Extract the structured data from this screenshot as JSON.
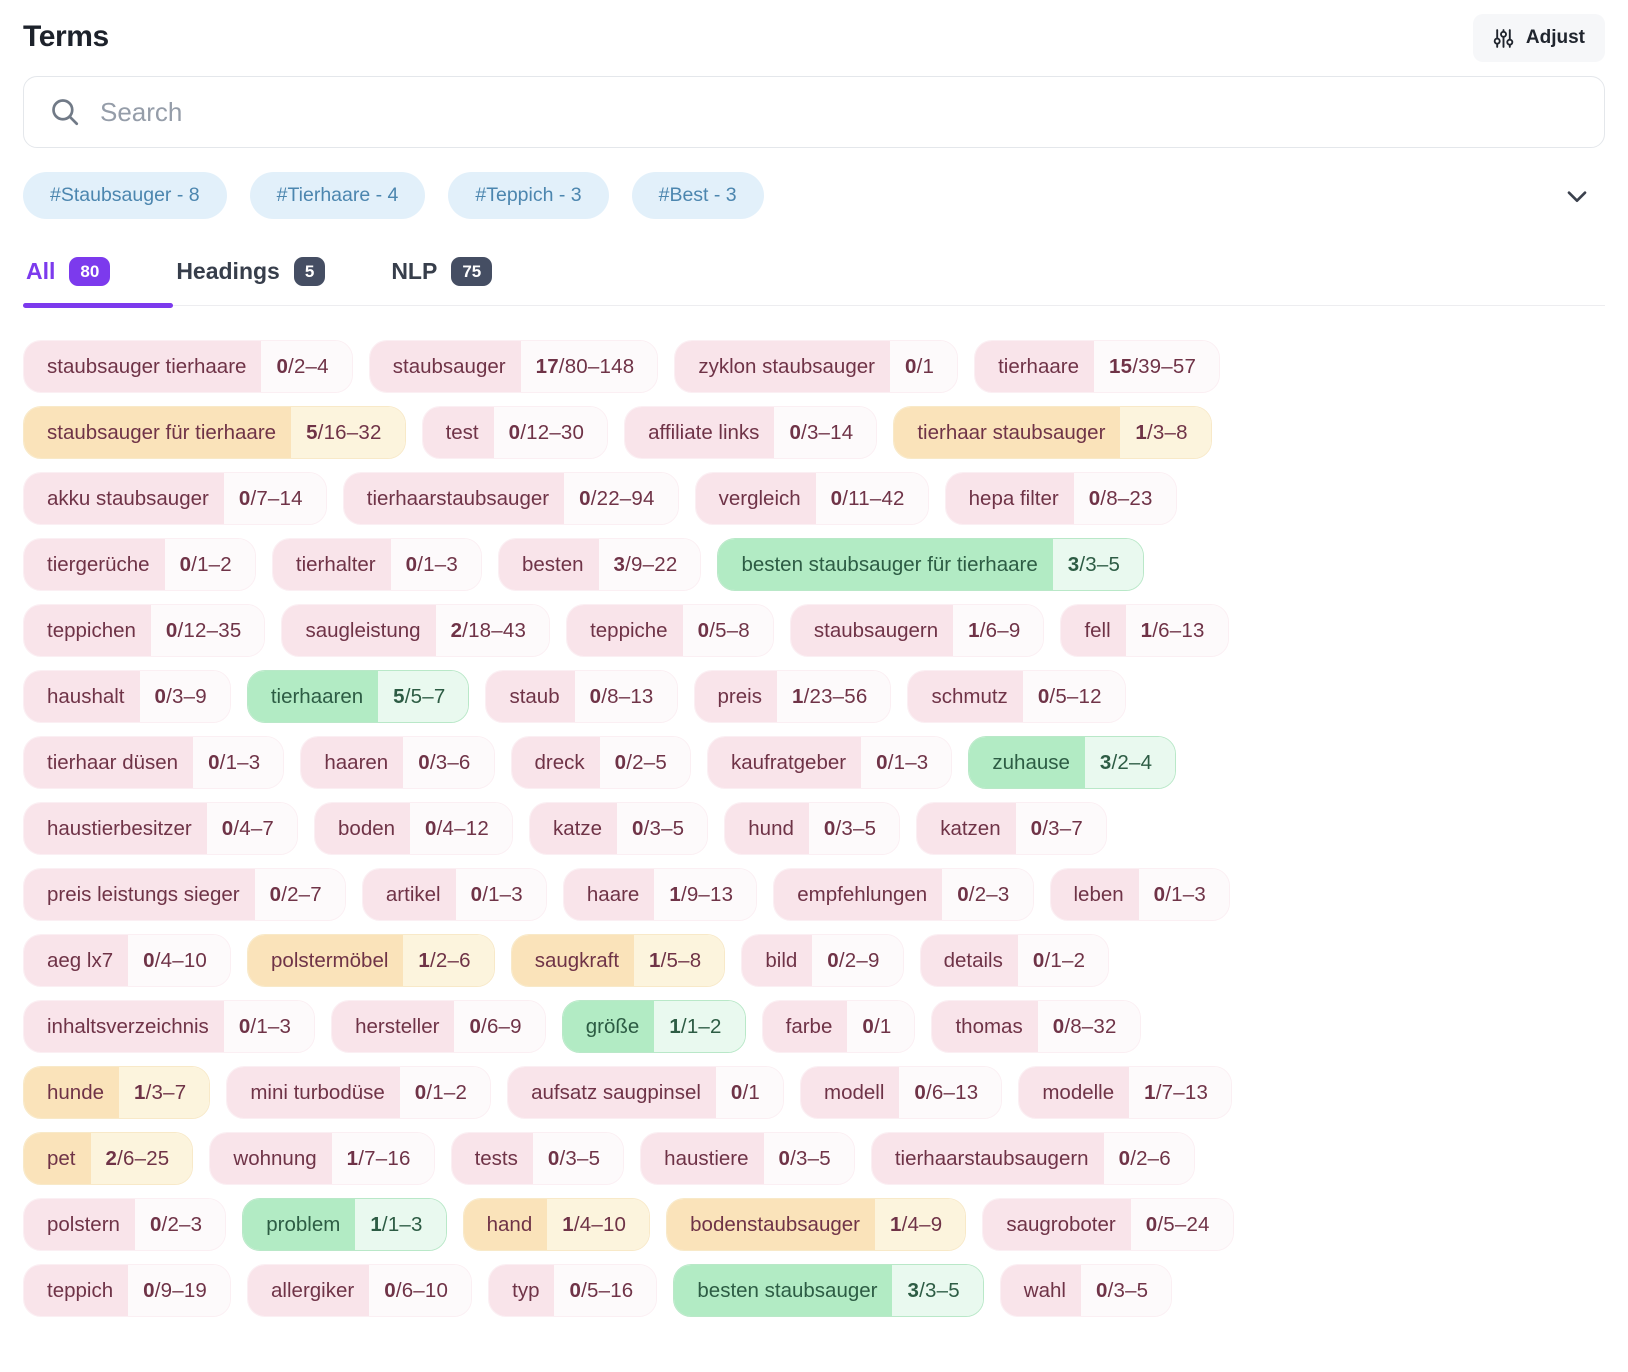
{
  "header": {
    "title": "Terms",
    "adjust_label": "Adjust"
  },
  "search": {
    "placeholder": "Search"
  },
  "hashtags": [
    "#Staubsauger - 8",
    "#Tierhaare - 4",
    "#Teppich - 3",
    "#Best - 3"
  ],
  "tabs": [
    {
      "label": "All",
      "count": "80",
      "active": true
    },
    {
      "label": "Headings",
      "count": "5",
      "active": false
    },
    {
      "label": "NLP",
      "count": "75",
      "active": false
    }
  ],
  "colors": {
    "accent_purple": "#7c3aed",
    "badge_slate": "#454e63",
    "hashtag_bg": "#e2f0fa",
    "hashtag_text": "#4c86af",
    "pink_label_bg": "#f9e4ea",
    "pink_count_bg": "#fdfafb",
    "pink_text": "#6f3347",
    "orange_label_bg": "#fae3ba",
    "orange_count_bg": "#fcf4dd",
    "green_label_bg": "#b2ebc4",
    "green_count_bg": "#e9f9ef",
    "green_text": "#2d5c44"
  },
  "terms": {
    "rows": [
      [
        {
          "label": "staubsauger tierhaare",
          "used": "0",
          "range": "2–4",
          "variant": "pink"
        },
        {
          "label": "staubsauger",
          "used": "17",
          "range": "80–148",
          "variant": "pink"
        },
        {
          "label": "zyklon staubsauger",
          "used": "0",
          "range": "1",
          "variant": "pink"
        },
        {
          "label": "tierhaare",
          "used": "15",
          "range": "39–57",
          "variant": "pink"
        }
      ],
      [
        {
          "label": "staubsauger für tierhaare",
          "used": "5",
          "range": "16–32",
          "variant": "orange"
        },
        {
          "label": "test",
          "used": "0",
          "range": "12–30",
          "variant": "pink"
        },
        {
          "label": "affiliate links",
          "used": "0",
          "range": "3–14",
          "variant": "pink"
        },
        {
          "label": "tierhaar staubsauger",
          "used": "1",
          "range": "3–8",
          "variant": "orange"
        }
      ],
      [
        {
          "label": "akku staubsauger",
          "used": "0",
          "range": "7–14",
          "variant": "pink"
        },
        {
          "label": "tierhaarstaubsauger",
          "used": "0",
          "range": "22–94",
          "variant": "pink"
        },
        {
          "label": "vergleich",
          "used": "0",
          "range": "11–42",
          "variant": "pink"
        },
        {
          "label": "hepa filter",
          "used": "0",
          "range": "8–23",
          "variant": "pink"
        }
      ],
      [
        {
          "label": "tiergerüche",
          "used": "0",
          "range": "1–2",
          "variant": "pink"
        },
        {
          "label": "tierhalter",
          "used": "0",
          "range": "1–3",
          "variant": "pink"
        },
        {
          "label": "besten",
          "used": "3",
          "range": "9–22",
          "variant": "pink"
        },
        {
          "label": "besten staubsauger für tierhaare",
          "used": "3",
          "range": "3–5",
          "variant": "green"
        }
      ],
      [
        {
          "label": "teppichen",
          "used": "0",
          "range": "12–35",
          "variant": "pink"
        },
        {
          "label": "saugleistung",
          "used": "2",
          "range": "18–43",
          "variant": "pink"
        },
        {
          "label": "teppiche",
          "used": "0",
          "range": "5–8",
          "variant": "pink"
        },
        {
          "label": "staubsaugern",
          "used": "1",
          "range": "6–9",
          "variant": "pink"
        },
        {
          "label": "fell",
          "used": "1",
          "range": "6–13",
          "variant": "pink"
        }
      ],
      [
        {
          "label": "haushalt",
          "used": "0",
          "range": "3–9",
          "variant": "pink"
        },
        {
          "label": "tierhaaren",
          "used": "5",
          "range": "5–7",
          "variant": "green"
        },
        {
          "label": "staub",
          "used": "0",
          "range": "8–13",
          "variant": "pink"
        },
        {
          "label": "preis",
          "used": "1",
          "range": "23–56",
          "variant": "pink"
        },
        {
          "label": "schmutz",
          "used": "0",
          "range": "5–12",
          "variant": "pink"
        }
      ],
      [
        {
          "label": "tierhaar düsen",
          "used": "0",
          "range": "1–3",
          "variant": "pink"
        },
        {
          "label": "haaren",
          "used": "0",
          "range": "3–6",
          "variant": "pink"
        },
        {
          "label": "dreck",
          "used": "0",
          "range": "2–5",
          "variant": "pink"
        },
        {
          "label": "kaufratgeber",
          "used": "0",
          "range": "1–3",
          "variant": "pink"
        },
        {
          "label": "zuhause",
          "used": "3",
          "range": "2–4",
          "variant": "green"
        }
      ],
      [
        {
          "label": "haustierbesitzer",
          "used": "0",
          "range": "4–7",
          "variant": "pink"
        },
        {
          "label": "boden",
          "used": "0",
          "range": "4–12",
          "variant": "pink"
        },
        {
          "label": "katze",
          "used": "0",
          "range": "3–5",
          "variant": "pink"
        },
        {
          "label": "hund",
          "used": "0",
          "range": "3–5",
          "variant": "pink"
        },
        {
          "label": "katzen",
          "used": "0",
          "range": "3–7",
          "variant": "pink"
        }
      ],
      [
        {
          "label": "preis leistungs sieger",
          "used": "0",
          "range": "2–7",
          "variant": "pink"
        },
        {
          "label": "artikel",
          "used": "0",
          "range": "1–3",
          "variant": "pink"
        },
        {
          "label": "haare",
          "used": "1",
          "range": "9–13",
          "variant": "pink"
        },
        {
          "label": "empfehlungen",
          "used": "0",
          "range": "2–3",
          "variant": "pink"
        },
        {
          "label": "leben",
          "used": "0",
          "range": "1–3",
          "variant": "pink"
        }
      ],
      [
        {
          "label": "aeg lx7",
          "used": "0",
          "range": "4–10",
          "variant": "pink"
        },
        {
          "label": "polstermöbel",
          "used": "1",
          "range": "2–6",
          "variant": "orange"
        },
        {
          "label": "saugkraft",
          "used": "1",
          "range": "5–8",
          "variant": "orange"
        },
        {
          "label": "bild",
          "used": "0",
          "range": "2–9",
          "variant": "pink"
        },
        {
          "label": "details",
          "used": "0",
          "range": "1–2",
          "variant": "pink"
        }
      ],
      [
        {
          "label": "inhaltsverzeichnis",
          "used": "0",
          "range": "1–3",
          "variant": "pink"
        },
        {
          "label": "hersteller",
          "used": "0",
          "range": "6–9",
          "variant": "pink"
        },
        {
          "label": "größe",
          "used": "1",
          "range": "1–2",
          "variant": "green"
        },
        {
          "label": "farbe",
          "used": "0",
          "range": "1",
          "variant": "pink"
        },
        {
          "label": "thomas",
          "used": "0",
          "range": "8–32",
          "variant": "pink"
        }
      ],
      [
        {
          "label": "hunde",
          "used": "1",
          "range": "3–7",
          "variant": "orange"
        },
        {
          "label": "mini turbodüse",
          "used": "0",
          "range": "1–2",
          "variant": "pink"
        },
        {
          "label": "aufsatz saugpinsel",
          "used": "0",
          "range": "1",
          "variant": "pink"
        },
        {
          "label": "modell",
          "used": "0",
          "range": "6–13",
          "variant": "pink"
        },
        {
          "label": "modelle",
          "used": "1",
          "range": "7–13",
          "variant": "pink"
        }
      ],
      [
        {
          "label": "pet",
          "used": "2",
          "range": "6–25",
          "variant": "orange"
        },
        {
          "label": "wohnung",
          "used": "1",
          "range": "7–16",
          "variant": "pink"
        },
        {
          "label": "tests",
          "used": "0",
          "range": "3–5",
          "variant": "pink"
        },
        {
          "label": "haustiere",
          "used": "0",
          "range": "3–5",
          "variant": "pink"
        },
        {
          "label": "tierhaarstaubsaugern",
          "used": "0",
          "range": "2–6",
          "variant": "pink"
        }
      ],
      [
        {
          "label": "polstern",
          "used": "0",
          "range": "2–3",
          "variant": "pink"
        },
        {
          "label": "problem",
          "used": "1",
          "range": "1–3",
          "variant": "green"
        },
        {
          "label": "hand",
          "used": "1",
          "range": "4–10",
          "variant": "orange"
        },
        {
          "label": "bodenstaubsauger",
          "used": "1",
          "range": "4–9",
          "variant": "orange"
        },
        {
          "label": "saugroboter",
          "used": "0",
          "range": "5–24",
          "variant": "pink"
        }
      ],
      [
        {
          "label": "teppich",
          "used": "0",
          "range": "9–19",
          "variant": "pink"
        },
        {
          "label": "allergiker",
          "used": "0",
          "range": "6–10",
          "variant": "pink"
        },
        {
          "label": "typ",
          "used": "0",
          "range": "5–16",
          "variant": "pink"
        },
        {
          "label": "besten staubsauger",
          "used": "3",
          "range": "3–5",
          "variant": "green"
        },
        {
          "label": "wahl",
          "used": "0",
          "range": "3–5",
          "variant": "pink"
        }
      ]
    ]
  }
}
